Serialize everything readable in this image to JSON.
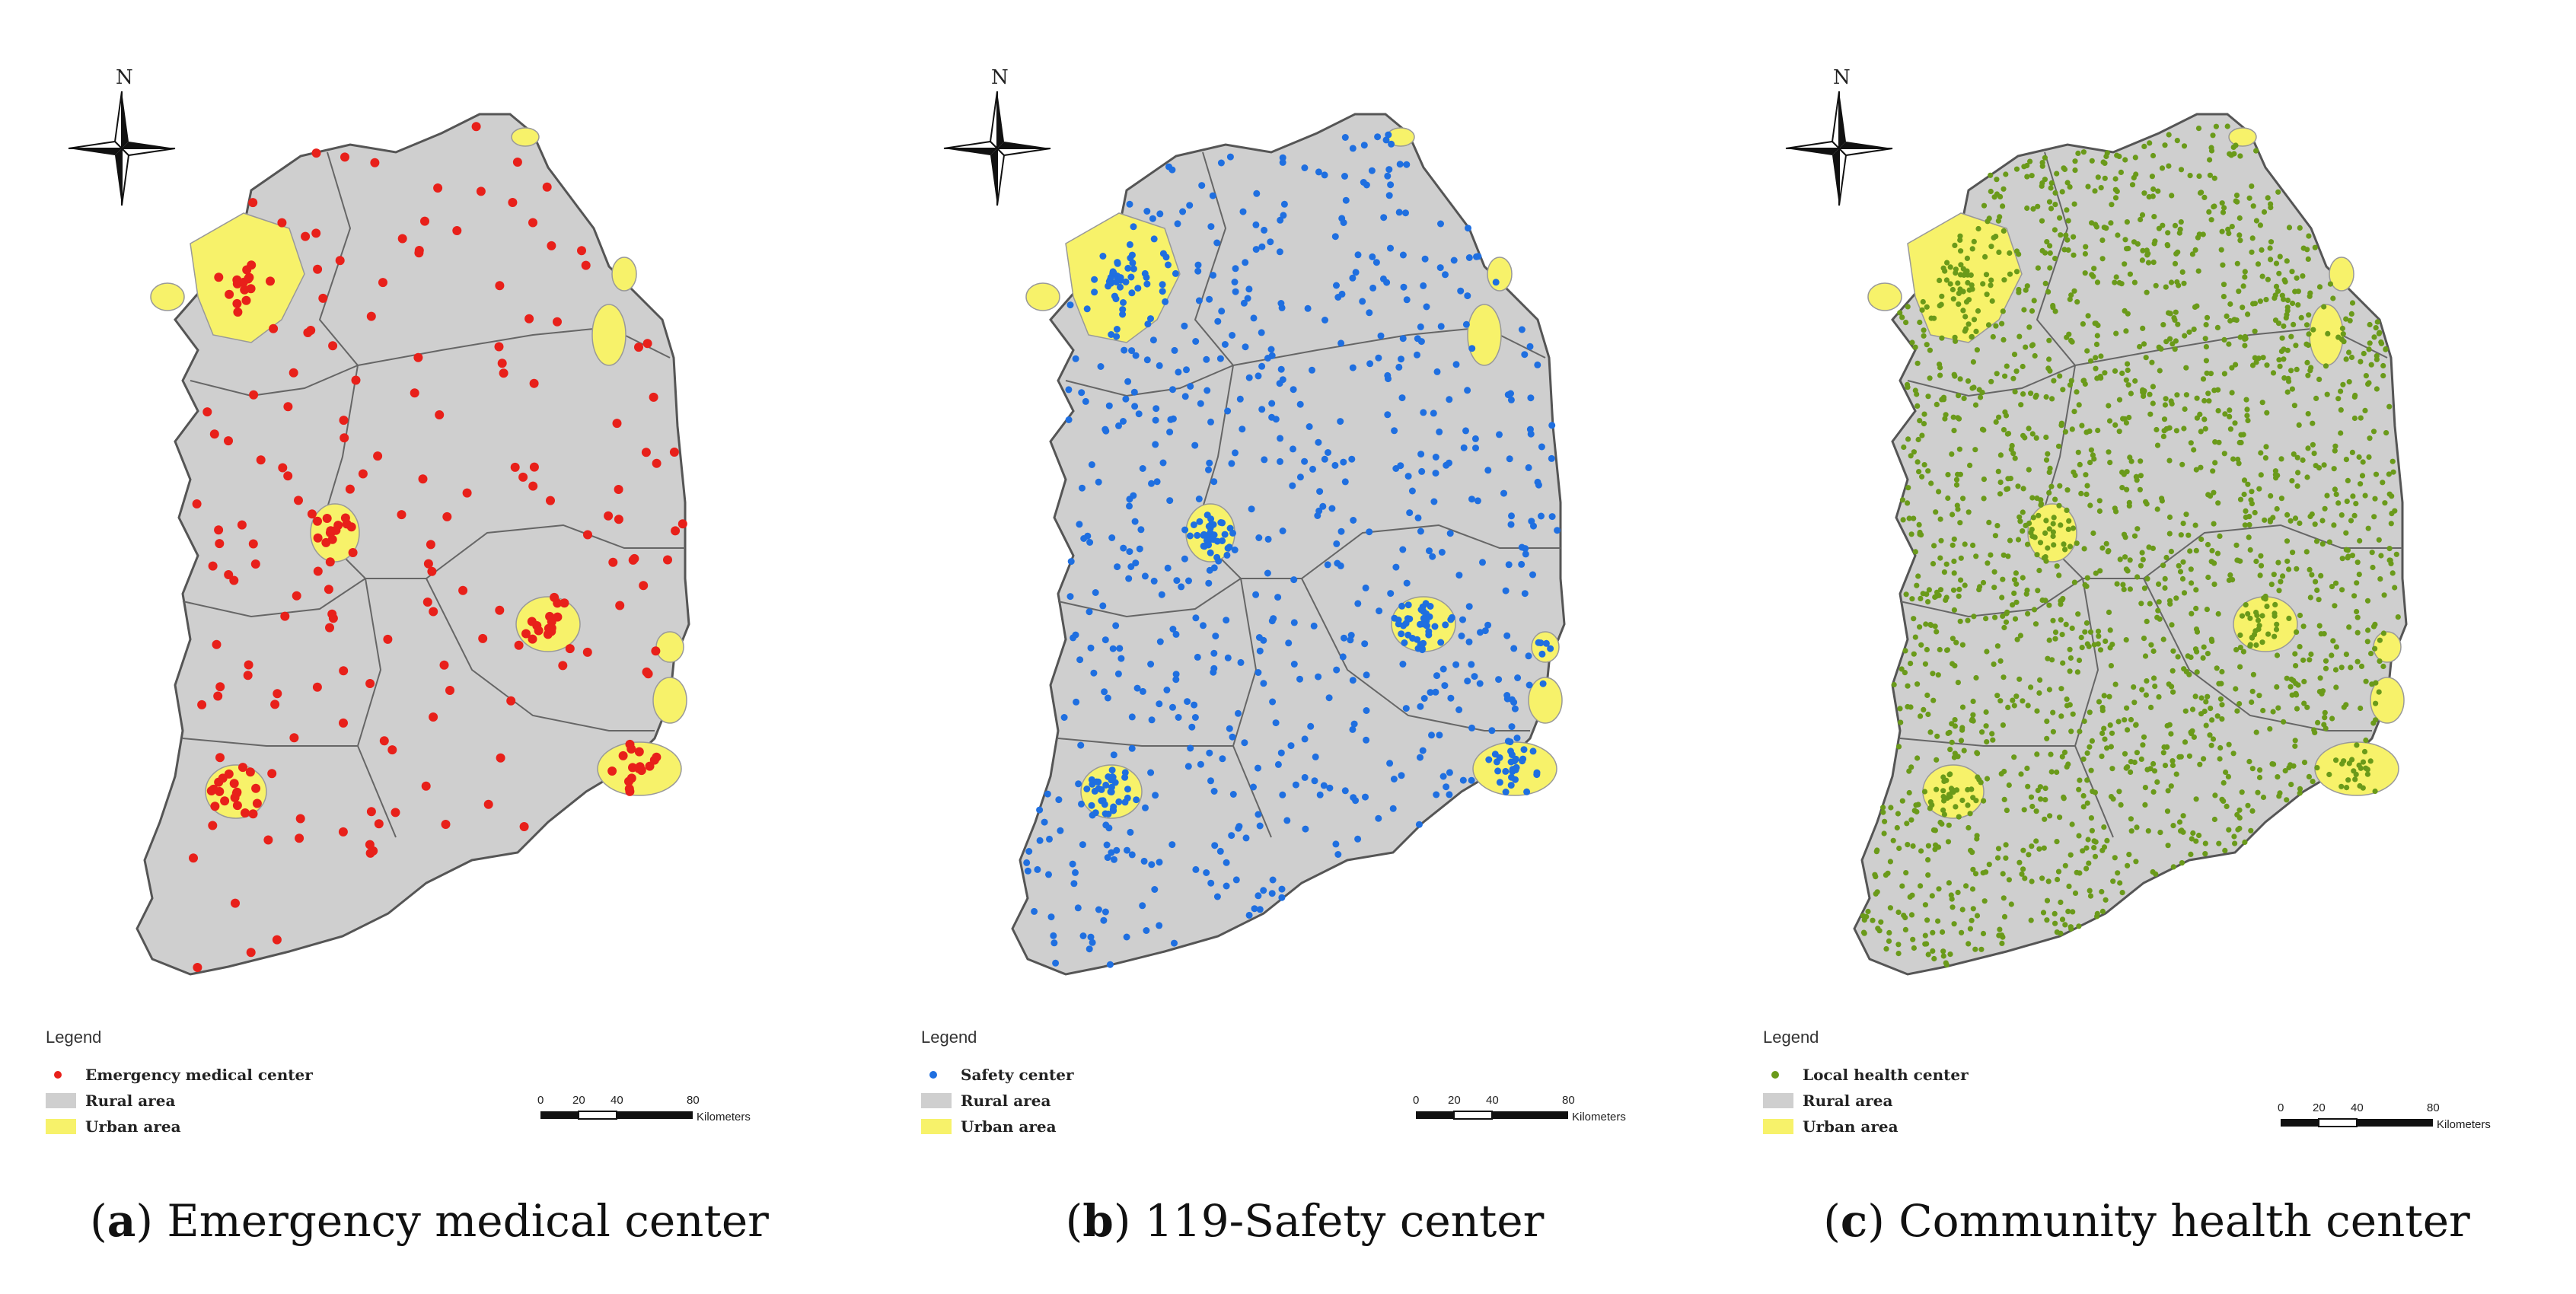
{
  "panels": [
    {
      "id": "a",
      "letter": "a",
      "title": "Emergency medical center",
      "legend_title": "Legend",
      "legend_items": [
        "Emergency medical center",
        "Rural area",
        "Urban area"
      ],
      "point_color": "#e8201a",
      "density": "sparse"
    },
    {
      "id": "b",
      "letter": "b",
      "title": "119-Safety center",
      "legend_title": "Legend",
      "legend_items": [
        "Safety center",
        "Rural area",
        "Urban area"
      ],
      "point_color": "#1f6fe0",
      "density": "medium"
    },
    {
      "id": "c",
      "letter": "c",
      "title": "Community health center",
      "legend_title": "Legend",
      "legend_items": [
        "Local health center",
        "Rural area",
        "Urban area"
      ],
      "point_color": "#6a9a1a",
      "density": "dense"
    }
  ],
  "north_label": "N",
  "scale": {
    "ticks": [
      "0",
      "20",
      "40",
      "80"
    ],
    "unit": "Kilometers"
  },
  "colors": {
    "rural": "#cfcfcf",
    "urban": "#f7f26a",
    "border": "#555555"
  }
}
